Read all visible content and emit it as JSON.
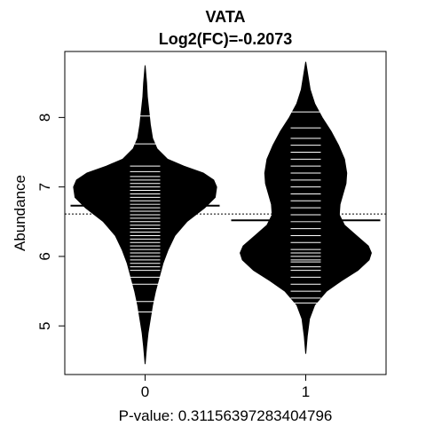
{
  "chart_data": {
    "type": "beanplot",
    "title": "VATA",
    "subtitle": "Log2(FC)=-0.2073",
    "ylabel": "Abundance",
    "xlabel": "P-value: 0.31156397283404796",
    "categories": [
      "0",
      "1"
    ],
    "ylim": [
      4.3,
      8.95
    ],
    "xlim": [
      0.5,
      2.5
    ],
    "yticks": [
      5,
      6,
      7,
      8
    ],
    "overall_line": 6.61,
    "groups": [
      {
        "label": "0",
        "mean": 6.73,
        "range": [
          4.45,
          8.75
        ],
        "density": [
          [
            4.45,
            0.0
          ],
          [
            4.7,
            0.02
          ],
          [
            4.9,
            0.04
          ],
          [
            5.1,
            0.07
          ],
          [
            5.3,
            0.1
          ],
          [
            5.5,
            0.14
          ],
          [
            5.7,
            0.19
          ],
          [
            5.9,
            0.24
          ],
          [
            6.1,
            0.31
          ],
          [
            6.3,
            0.4
          ],
          [
            6.5,
            0.56
          ],
          [
            6.7,
            0.8
          ],
          [
            6.85,
            0.94
          ],
          [
            7.0,
            0.96
          ],
          [
            7.1,
            0.92
          ],
          [
            7.2,
            0.78
          ],
          [
            7.3,
            0.52
          ],
          [
            7.4,
            0.3
          ],
          [
            7.55,
            0.16
          ],
          [
            7.7,
            0.1
          ],
          [
            7.9,
            0.07
          ],
          [
            8.1,
            0.05
          ],
          [
            8.3,
            0.03
          ],
          [
            8.5,
            0.02
          ],
          [
            8.75,
            0.0
          ]
        ],
        "points": [
          8.02,
          7.62,
          7.3,
          7.22,
          7.15,
          7.1,
          7.05,
          7.0,
          6.95,
          6.9,
          6.85,
          6.8,
          6.75,
          6.7,
          6.65,
          6.6,
          6.55,
          6.5,
          6.45,
          6.4,
          6.35,
          6.3,
          6.25,
          6.2,
          6.15,
          6.1,
          6.05,
          6.0,
          5.95,
          5.9,
          5.85,
          5.8,
          5.7,
          5.6,
          5.35,
          5.2
        ]
      },
      {
        "label": "1",
        "mean": 6.52,
        "range": [
          4.6,
          8.8
        ],
        "density": [
          [
            4.6,
            0.0
          ],
          [
            4.85,
            0.02
          ],
          [
            5.1,
            0.05
          ],
          [
            5.3,
            0.12
          ],
          [
            5.5,
            0.28
          ],
          [
            5.65,
            0.48
          ],
          [
            5.8,
            0.7
          ],
          [
            5.95,
            0.85
          ],
          [
            6.05,
            0.88
          ],
          [
            6.15,
            0.84
          ],
          [
            6.3,
            0.68
          ],
          [
            6.45,
            0.52
          ],
          [
            6.6,
            0.45
          ],
          [
            6.75,
            0.46
          ],
          [
            6.9,
            0.5
          ],
          [
            7.05,
            0.54
          ],
          [
            7.2,
            0.55
          ],
          [
            7.4,
            0.52
          ],
          [
            7.6,
            0.44
          ],
          [
            7.8,
            0.34
          ],
          [
            8.0,
            0.22
          ],
          [
            8.2,
            0.12
          ],
          [
            8.4,
            0.06
          ],
          [
            8.6,
            0.03
          ],
          [
            8.8,
            0.0
          ]
        ],
        "points": [
          8.08,
          7.85,
          7.7,
          7.6,
          7.5,
          7.4,
          7.3,
          7.2,
          7.1,
          7.0,
          6.9,
          6.8,
          6.7,
          6.6,
          6.5,
          6.4,
          6.3,
          6.2,
          6.1,
          6.05,
          6.0,
          5.95,
          5.92,
          5.85,
          5.8,
          5.7,
          5.6,
          5.5,
          5.4,
          5.33
        ]
      }
    ]
  }
}
